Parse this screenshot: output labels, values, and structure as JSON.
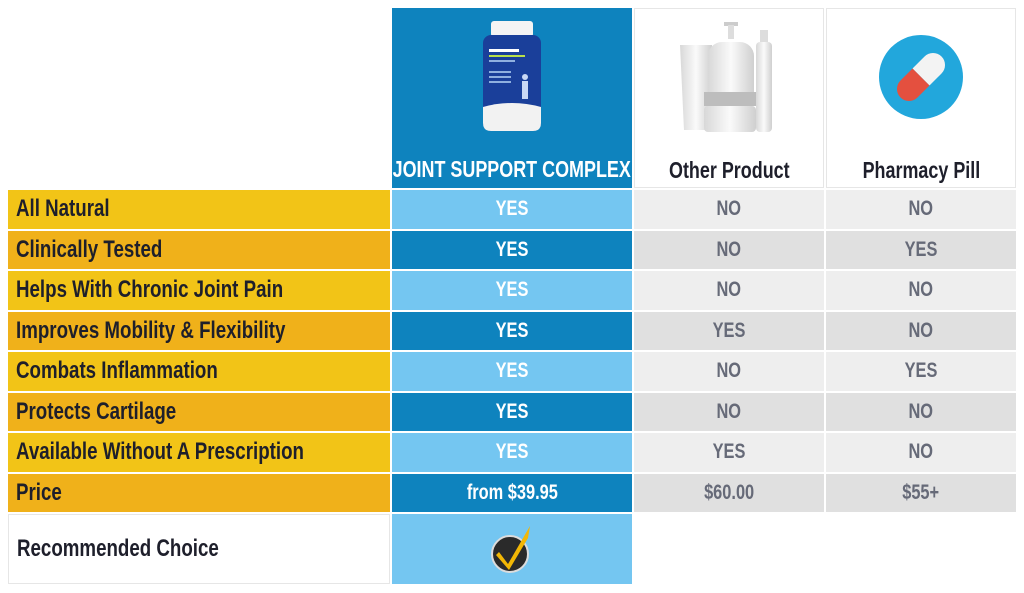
{
  "columns": [
    {
      "name": "JOINT SUPPORT COMPLEX",
      "image": "supplement-bottle",
      "logo_text": "ARTHRO MD+"
    },
    {
      "name": "Other Product",
      "image": "cosmetic-bottles"
    },
    {
      "name": "Pharmacy Pill",
      "image": "capsule-pill"
    }
  ],
  "rows": [
    {
      "label": "All Natural",
      "values": [
        "YES",
        "NO",
        "NO"
      ]
    },
    {
      "label": "Clinically Tested",
      "values": [
        "YES",
        "NO",
        "YES"
      ]
    },
    {
      "label": "Helps With Chronic Joint Pain",
      "values": [
        "YES",
        "NO",
        "NO"
      ]
    },
    {
      "label": "Improves Mobility & Flexibility",
      "values": [
        "YES",
        "YES",
        "NO"
      ]
    },
    {
      "label": "Combats Inflammation",
      "values": [
        "YES",
        "NO",
        "YES"
      ]
    },
    {
      "label": "Protects Cartilage",
      "values": [
        "YES",
        "NO",
        "NO"
      ]
    },
    {
      "label": "Available Without A Prescription",
      "values": [
        "YES",
        "YES",
        "NO"
      ]
    },
    {
      "label": "Price",
      "values": [
        "from $39.95",
        "$60.00",
        "$55+"
      ]
    }
  ],
  "recommended": {
    "label": "Recommended Choice",
    "icon": "checkmark-badge-icon"
  },
  "colors": {
    "label_yellow": "#f2c417",
    "label_orange": "#f0b11a",
    "brand_blue": "#0e83be",
    "light_blue": "#74c6f1",
    "gray_text": "#666a78",
    "check_yellow": "#f2b705"
  }
}
